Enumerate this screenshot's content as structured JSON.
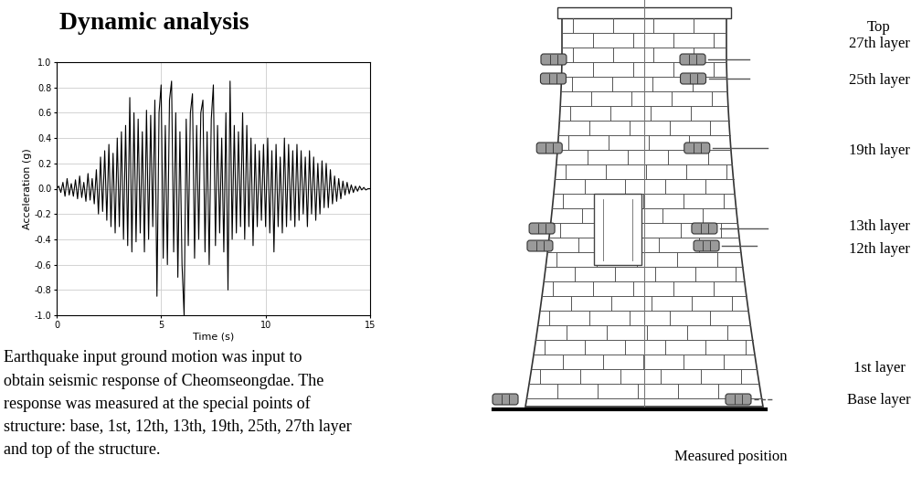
{
  "title": "Dynamic analysis",
  "chart_data": {
    "type": "line",
    "x": [
      0.0,
      0.1,
      0.2,
      0.3,
      0.4,
      0.5,
      0.6,
      0.7,
      0.8,
      0.9,
      1.0,
      1.1,
      1.2,
      1.3,
      1.4,
      1.5,
      1.6,
      1.7,
      1.8,
      1.9,
      2.0,
      2.1,
      2.2,
      2.3,
      2.4,
      2.5,
      2.6,
      2.7,
      2.8,
      2.9,
      3.0,
      3.1,
      3.2,
      3.3,
      3.4,
      3.5,
      3.6,
      3.7,
      3.8,
      3.9,
      4.0,
      4.1,
      4.2,
      4.3,
      4.4,
      4.5,
      4.6,
      4.7,
      4.8,
      4.9,
      5.0,
      5.1,
      5.2,
      5.3,
      5.4,
      5.5,
      5.6,
      5.7,
      5.8,
      5.9,
      6.0,
      6.1,
      6.2,
      6.3,
      6.4,
      6.5,
      6.6,
      6.7,
      6.8,
      6.9,
      7.0,
      7.1,
      7.2,
      7.3,
      7.4,
      7.5,
      7.6,
      7.7,
      7.8,
      7.9,
      8.0,
      8.1,
      8.2,
      8.3,
      8.4,
      8.5,
      8.6,
      8.7,
      8.8,
      8.9,
      9.0,
      9.1,
      9.2,
      9.3,
      9.4,
      9.5,
      9.6,
      9.7,
      9.8,
      9.9,
      10.0,
      10.1,
      10.2,
      10.3,
      10.4,
      10.5,
      10.6,
      10.7,
      10.8,
      10.9,
      11.0,
      11.1,
      11.2,
      11.3,
      11.4,
      11.5,
      11.6,
      11.7,
      11.8,
      11.9,
      12.0,
      12.1,
      12.2,
      12.3,
      12.4,
      12.5,
      12.6,
      12.7,
      12.8,
      12.9,
      13.0,
      13.1,
      13.2,
      13.3,
      13.4,
      13.5,
      13.6,
      13.7,
      13.8,
      13.9,
      14.0,
      14.1,
      14.2,
      14.3,
      14.4,
      14.5,
      14.6,
      14.7,
      14.8,
      14.9,
      15.0
    ],
    "values": [
      0,
      0.02,
      -0.03,
      0.05,
      -0.06,
      0.08,
      -0.05,
      0.04,
      -0.06,
      0.07,
      -0.08,
      0.1,
      -0.07,
      0.05,
      -0.1,
      0.12,
      -0.09,
      0.08,
      -0.12,
      0.15,
      -0.2,
      0.25,
      -0.18,
      0.3,
      -0.25,
      0.35,
      -0.3,
      0.28,
      -0.35,
      0.4,
      -0.3,
      0.45,
      -0.4,
      0.5,
      -0.45,
      0.72,
      -0.5,
      0.6,
      -0.42,
      0.55,
      -0.35,
      0.45,
      -0.5,
      0.62,
      -0.4,
      0.58,
      -0.3,
      0.7,
      -0.85,
      0.6,
      0.82,
      -0.55,
      0.5,
      -0.6,
      0.7,
      0.85,
      -0.5,
      0.6,
      -0.7,
      0.45,
      -0.6,
      -1.0,
      0.55,
      -0.45,
      0.6,
      0.75,
      -0.55,
      0.5,
      -0.4,
      0.6,
      0.7,
      -0.5,
      0.45,
      -0.6,
      0.55,
      0.82,
      -0.45,
      0.5,
      -0.35,
      0.4,
      -0.5,
      0.6,
      -0.8,
      0.85,
      -0.4,
      0.5,
      -0.35,
      0.45,
      -0.3,
      0.6,
      -0.4,
      0.5,
      -0.3,
      0.4,
      -0.45,
      0.35,
      -0.3,
      0.3,
      -0.25,
      0.35,
      -0.3,
      0.4,
      -0.35,
      0.3,
      -0.5,
      0.35,
      -0.3,
      0.25,
      -0.35,
      0.4,
      -0.3,
      0.35,
      -0.25,
      0.3,
      -0.3,
      0.35,
      -0.25,
      0.3,
      -0.2,
      0.25,
      -0.3,
      0.3,
      -0.2,
      0.25,
      -0.25,
      0.2,
      -0.2,
      0.22,
      -0.15,
      0.2,
      -0.15,
      0.15,
      -0.12,
      0.1,
      -0.1,
      0.08,
      -0.08,
      0.06,
      -0.05,
      0.05,
      -0.04,
      0.03,
      -0.03,
      0.02,
      -0.02,
      0.02,
      -0.01,
      0.01,
      -0.01,
      0.0,
      0
    ],
    "color": "#000000",
    "xlabel": "Time (s)",
    "ylabel": "Acceleration (g)",
    "xlim": [
      0,
      15
    ],
    "ylim": [
      -1.0,
      1.0
    ],
    "xticks": [
      0,
      5,
      10,
      15
    ],
    "yticks": [
      {
        "value": -1.0,
        "label": "-1.0"
      },
      {
        "value": -0.8,
        "label": "-0.8"
      },
      {
        "value": -0.6,
        "label": "-0.6"
      },
      {
        "value": -0.4,
        "label": "-0.4"
      },
      {
        "value": -0.2,
        "label": "-0.2"
      },
      {
        "value": 0.0,
        "label": "0.0"
      },
      {
        "value": 0.2,
        "label": "0.2"
      },
      {
        "value": 0.4,
        "label": "0.4"
      },
      {
        "value": 0.6,
        "label": "0.6"
      },
      {
        "value": 0.8,
        "label": "0.8"
      },
      {
        "value": 1.0,
        "label": "1.0"
      }
    ],
    "grid": true
  },
  "paragraph_lines": [
    "Earthquake input ground motion was input to",
    "obtain seismic response of Cheomseongdae. The",
    "response was measured at the special points of",
    "structure: base, 1st, 12th, 13th, 19th, 25th, 27th layer",
    "and top of the structure."
  ],
  "diagram": {
    "labels": [
      "Top",
      "27th layer",
      "25th layer",
      "19th layer",
      "13th layer",
      "12th layer",
      "1st layer",
      "Base layer"
    ],
    "caption": "Measured position"
  }
}
